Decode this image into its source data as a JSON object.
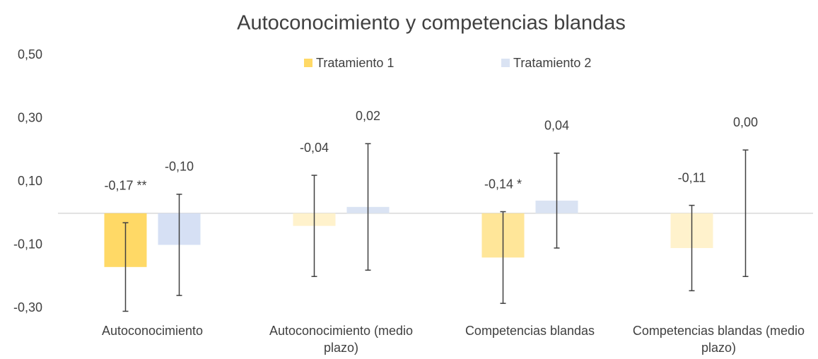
{
  "chart_data": {
    "type": "bar",
    "title": "Autoconocimiento y competencias blandas",
    "categories": [
      "Autoconocimiento",
      "Autoconocimiento (medio plazo)",
      "Competencias blandas",
      "Competencias blandas (medio plazo)"
    ],
    "series": [
      {
        "name": "Tratamiento 1",
        "color": "#FFD966",
        "colors": [
          "#FFD966",
          "#FFF2CC",
          "#FFE699",
          "#FFF2CC"
        ],
        "values": [
          -0.17,
          -0.04,
          -0.14,
          -0.11
        ],
        "value_labels": [
          "-0,17 **",
          "-0,04",
          "-0,14 *",
          "-0,11"
        ],
        "errors": [
          0.14,
          0.16,
          0.145,
          0.135
        ]
      },
      {
        "name": "Tratamiento 2",
        "color": "#DAE3F3",
        "colors": [
          "#D6E0F4",
          "#DAE3F3",
          "#DAE3F3",
          "#DAE3F3"
        ],
        "values": [
          -0.1,
          0.02,
          0.04,
          0.0
        ],
        "value_labels": [
          "-0,10",
          "0,02",
          "0,04",
          "0,00"
        ],
        "errors": [
          0.16,
          0.2,
          0.15,
          0.2
        ]
      }
    ],
    "ylim": [
      -0.3,
      0.5
    ],
    "yticks": [
      {
        "value": -0.3,
        "label": "-0,30"
      },
      {
        "value": -0.1,
        "label": "-0,10"
      },
      {
        "value": 0.1,
        "label": "0,10"
      },
      {
        "value": 0.3,
        "label": "0,30"
      },
      {
        "value": 0.5,
        "label": "0,50"
      }
    ],
    "grid": false,
    "legend": "top",
    "error_bar_color": "#404040"
  }
}
